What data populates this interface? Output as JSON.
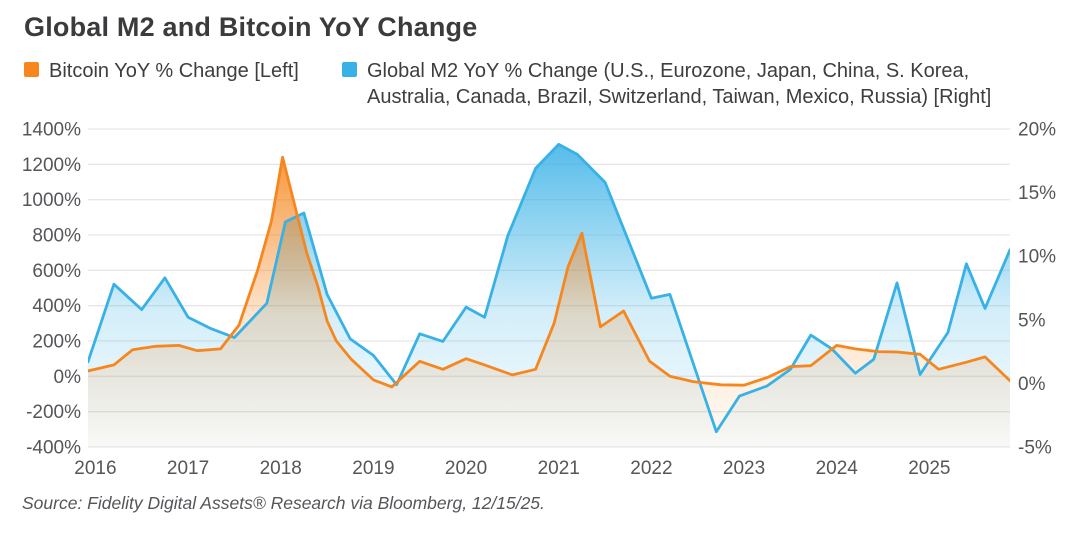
{
  "title": "Global M2 and Bitcoin YoY Change",
  "legend": {
    "bitcoin": {
      "label": "Bitcoin YoY % Change [Left]",
      "color": "#F6871F"
    },
    "m2": {
      "label": "Global M2 YoY % Change (U.S., Eurozone, Japan, China, S. Korea, Australia, Canada, Brazil, Switzerland, Taiwan, Mexico, Russia) [Right]",
      "color": "#38B1E6"
    }
  },
  "source": "Source: Fidelity Digital Assets® Research via Bloomberg, 12/15/25.",
  "colors": {
    "bitcoin_line": "#F6871F",
    "m2_line": "#38B1E6",
    "gridline": "#e7e7e7",
    "axis_text": "#55565a",
    "title_text": "#3a3b3d"
  },
  "chart_data": {
    "type": "area",
    "title": "Global M2 and Bitcoin YoY Change",
    "xlabel": "",
    "ylabel_left": "Bitcoin YoY % Change",
    "ylabel_right": "Global M2 YoY % Change",
    "grid": true,
    "legend_position": "top",
    "x_range": [
      2015.92,
      2025.87
    ],
    "x_tick_years": [
      2016,
      2017,
      2018,
      2019,
      2020,
      2021,
      2022,
      2023,
      2024,
      2025
    ],
    "left_axis": {
      "ticks": [
        1400,
        1200,
        1000,
        800,
        600,
        400,
        200,
        0,
        -200,
        -400
      ],
      "range": [
        -400,
        1400
      ],
      "suffix": "%"
    },
    "right_axis": {
      "ticks": [
        20,
        15,
        10,
        5,
        0,
        -5
      ],
      "range": [
        -5,
        20
      ],
      "suffix": "%"
    },
    "series": [
      {
        "name": "Bitcoin YoY % Change",
        "axis": "left",
        "color": "#F6871F",
        "x": [
          2015.92,
          2016.2,
          2016.4,
          2016.65,
          2016.9,
          2017.1,
          2017.35,
          2017.55,
          2017.75,
          2017.9,
          2018.02,
          2018.28,
          2018.4,
          2018.5,
          2018.6,
          2018.76,
          2019.0,
          2019.2,
          2019.5,
          2019.75,
          2020.0,
          2020.2,
          2020.5,
          2020.75,
          2020.95,
          2021.1,
          2021.25,
          2021.45,
          2021.7,
          2021.98,
          2022.2,
          2022.45,
          2022.75,
          2023.0,
          2023.26,
          2023.5,
          2023.72,
          2024.0,
          2024.2,
          2024.45,
          2024.65,
          2024.9,
          2025.1,
          2025.4,
          2025.6,
          2025.87
        ],
        "values": [
          30,
          65,
          150,
          170,
          175,
          145,
          155,
          290,
          600,
          880,
          1240,
          700,
          510,
          314,
          200,
          97,
          -20,
          -60,
          85,
          40,
          100,
          65,
          8,
          40,
          300,
          620,
          810,
          280,
          370,
          86,
          0,
          -30,
          -48,
          -50,
          -5,
          55,
          60,
          175,
          155,
          140,
          138,
          125,
          40,
          80,
          110,
          -25
        ]
      },
      {
        "name": "Global M2 YoY % Change",
        "axis": "right",
        "color": "#38B1E6",
        "x": [
          2015.92,
          2016.2,
          2016.5,
          2016.75,
          2017.0,
          2017.25,
          2017.5,
          2017.85,
          2018.05,
          2018.25,
          2018.5,
          2018.75,
          2019.0,
          2019.25,
          2019.5,
          2019.75,
          2020.0,
          2020.2,
          2020.45,
          2020.75,
          2021.0,
          2021.2,
          2021.5,
          2022.0,
          2022.2,
          2022.7,
          2022.95,
          2023.25,
          2023.5,
          2023.72,
          2023.95,
          2024.2,
          2024.4,
          2024.65,
          2024.9,
          2025.2,
          2025.4,
          2025.6,
          2025.87
        ],
        "values": [
          1.7,
          7.8,
          5.8,
          8.3,
          5.2,
          4.3,
          3.6,
          6.3,
          12.7,
          13.4,
          7.0,
          3.5,
          2.2,
          -0.1,
          3.9,
          3.3,
          6.0,
          5.2,
          11.6,
          16.9,
          18.8,
          18.0,
          15.8,
          6.7,
          7.0,
          -3.8,
          -1.0,
          -0.2,
          1.1,
          3.8,
          2.7,
          0.8,
          1.9,
          7.9,
          0.7,
          4.0,
          9.4,
          5.9,
          10.5
        ]
      }
    ]
  }
}
